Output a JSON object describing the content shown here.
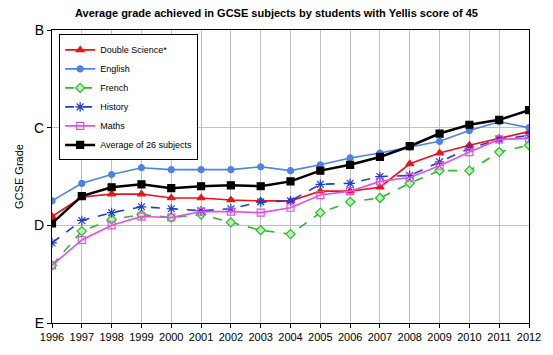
{
  "chart_data": {
    "type": "line",
    "title": "Average grade achieved in GCSE subjects by students with Yellis score of 45",
    "y_label": "GCSE Grade",
    "x": [
      1996,
      1997,
      1998,
      1999,
      2000,
      2001,
      2002,
      2003,
      2004,
      2005,
      2006,
      2007,
      2008,
      2009,
      2010,
      2011,
      2012
    ],
    "xlim": [
      1996,
      2012
    ],
    "xticks": [
      1996,
      1997,
      1998,
      1999,
      2000,
      2001,
      2002,
      2003,
      2004,
      2005,
      2006,
      2007,
      2008,
      2009,
      2010,
      2011,
      2012
    ],
    "ylim": [
      3,
      6
    ],
    "yticks": [
      {
        "value": 3,
        "label": "E"
      },
      {
        "value": 4,
        "label": "D"
      },
      {
        "value": 5,
        "label": "C"
      },
      {
        "value": 6,
        "label": "B"
      }
    ],
    "grid": true,
    "legend": "upper left",
    "series": [
      {
        "name": "Double Science*",
        "color": "#e8141b",
        "marker": "triangle-up",
        "line_style": "solid",
        "values": [
          4.09,
          4.29,
          4.32,
          4.32,
          4.28,
          4.28,
          4.26,
          4.25,
          4.25,
          4.35,
          4.35,
          4.39,
          4.63,
          4.74,
          4.82,
          4.89,
          4.96
        ]
      },
      {
        "name": "English",
        "color": "#4f81e8",
        "marker": "circle",
        "line_style": "solid",
        "values": [
          4.25,
          4.43,
          4.52,
          4.59,
          4.57,
          4.57,
          4.57,
          4.6,
          4.56,
          4.62,
          4.69,
          4.74,
          4.8,
          4.86,
          4.97,
          5.06,
          5.0
        ]
      },
      {
        "name": "French",
        "color": "#2db82d",
        "marker": "diamond",
        "line_style": "dashed",
        "values": [
          3.59,
          3.94,
          4.06,
          4.11,
          4.08,
          4.11,
          4.03,
          3.95,
          3.91,
          4.13,
          4.24,
          4.28,
          4.43,
          4.56,
          4.56,
          4.75,
          4.82
        ]
      },
      {
        "name": "History",
        "color": "#1f3fc8",
        "marker": "asterisk",
        "line_style": "dashed",
        "values": [
          3.82,
          4.05,
          4.13,
          4.19,
          4.17,
          4.15,
          4.17,
          4.24,
          4.25,
          4.42,
          4.43,
          4.5,
          4.51,
          4.65,
          4.79,
          4.88,
          4.92
        ]
      },
      {
        "name": "Maths",
        "color": "#e34fe3",
        "marker": "square-open",
        "line_style": "solid",
        "values": [
          3.59,
          3.85,
          4.0,
          4.09,
          4.08,
          4.14,
          4.14,
          4.13,
          4.18,
          4.31,
          4.35,
          4.45,
          4.49,
          4.61,
          4.75,
          4.88,
          4.89
        ]
      },
      {
        "name": "Average of 26 subjects",
        "color": "#000000",
        "marker": "square",
        "line_style": "solid",
        "values": [
          4.02,
          4.3,
          4.39,
          4.42,
          4.38,
          4.4,
          4.41,
          4.4,
          4.45,
          4.56,
          4.62,
          4.7,
          4.81,
          4.94,
          5.03,
          5.08,
          5.18
        ]
      }
    ]
  }
}
